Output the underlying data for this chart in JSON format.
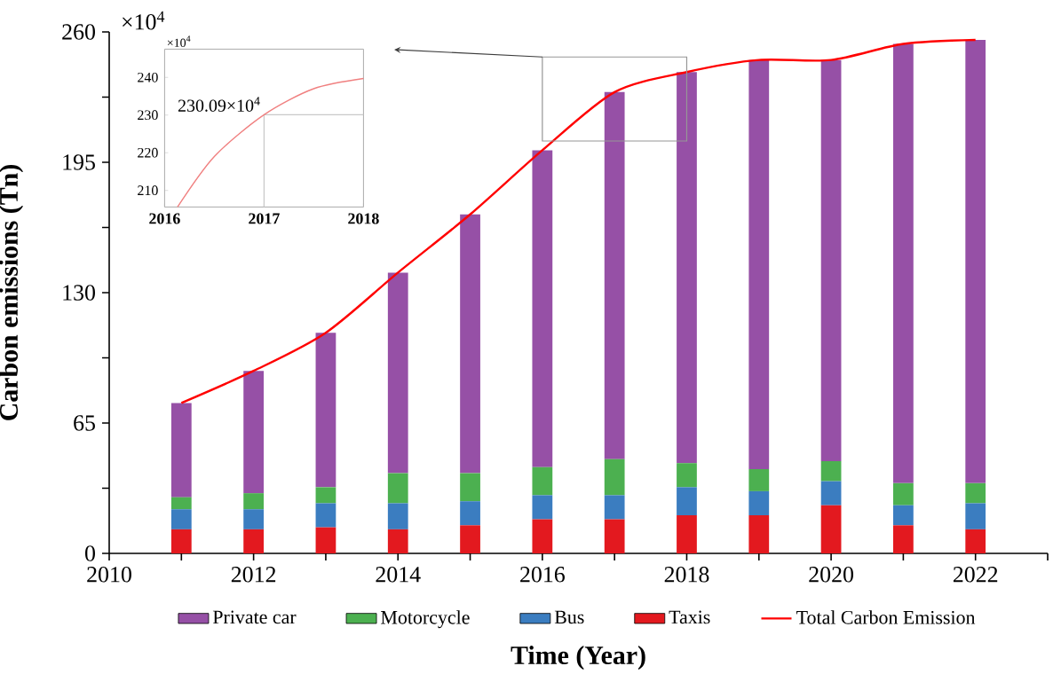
{
  "chart_data": [
    {
      "type": "bar",
      "stacked": true,
      "xlabel": "Time (Year)",
      "ylabel": "Carbon emissions (Tn)",
      "x": [
        2011,
        2012,
        2013,
        2014,
        2015,
        2016,
        2017,
        2018,
        2019,
        2020,
        2021,
        2022
      ],
      "series": [
        {
          "name": "Taxis",
          "color": "#e3191f",
          "values": [
            12,
            12,
            13,
            12,
            14,
            17,
            17,
            19,
            19,
            24,
            14,
            12
          ]
        },
        {
          "name": "Bus",
          "color": "#3b7dc0",
          "values": [
            10,
            10,
            12,
            13,
            12,
            12,
            12,
            14,
            12,
            12,
            10,
            13
          ]
        },
        {
          "name": "Motorcycle",
          "color": "#4cb050",
          "values": [
            6,
            8,
            8,
            15,
            14,
            14,
            18,
            12,
            11,
            10,
            11,
            10
          ]
        },
        {
          "name": "Private car",
          "color": "#9650a6",
          "values": [
            47,
            61,
            77,
            100,
            129,
            158,
            183,
            195,
            204,
            200,
            219,
            221
          ]
        },
        {
          "name": "Total Carbon Emission",
          "type": "line",
          "color": "#ff0000",
          "values": [
            75,
            91,
            110,
            140,
            169,
            201,
            230,
            240,
            246,
            246,
            254,
            256
          ]
        }
      ],
      "xlim": [
        2010,
        2023
      ],
      "ylim": [
        0,
        260
      ],
      "xticks": [
        2010,
        {
          "value": 2011,
          "label": null
        },
        2012,
        {
          "value": 2013,
          "label": null
        },
        2014,
        {
          "value": 2015,
          "label": null
        },
        2016,
        {
          "value": 2017,
          "label": null
        },
        2018,
        {
          "value": 2019,
          "label": null
        },
        2020,
        {
          "value": 2021,
          "label": null
        },
        2022,
        {
          "value": 2023,
          "label": null
        }
      ],
      "yticks": [
        0,
        {
          "value": 32.5,
          "label": null
        },
        65,
        {
          "value": 97.5,
          "label": null
        },
        130,
        {
          "value": 162.5,
          "label": null
        },
        195,
        {
          "value": 227.5,
          "label": null
        },
        260
      ],
      "legend": "bottom",
      "annotations": [
        "×10$^{4}$"
      ]
    },
    {
      "type": "line",
      "series": [
        {
          "color": "#f08080",
          "x": [
            2016.13,
            2016.5,
            2017,
            2017.5,
            2018
          ],
          "values": [
            205.6,
            219,
            230.09,
            237,
            239.7
          ]
        }
      ],
      "xlim": [
        2016,
        2018
      ],
      "ylim": [
        205.6,
        247.5
      ],
      "xticks": [
        2016,
        2017,
        2018
      ],
      "yticks": [
        210,
        220,
        230,
        240
      ],
      "ref_lines": [
        {
          "axis": "x",
          "value": 2017,
          "color": "#c8c8c8"
        },
        {
          "axis": "y",
          "value": 230.09,
          "color": "#c8c8c8"
        }
      ],
      "annotations": [
        "×10$^{4}$",
        {
          "text": "230.09×10$^{4}$",
          "x": 2017,
          "y": 230.09
        }
      ]
    }
  ]
}
